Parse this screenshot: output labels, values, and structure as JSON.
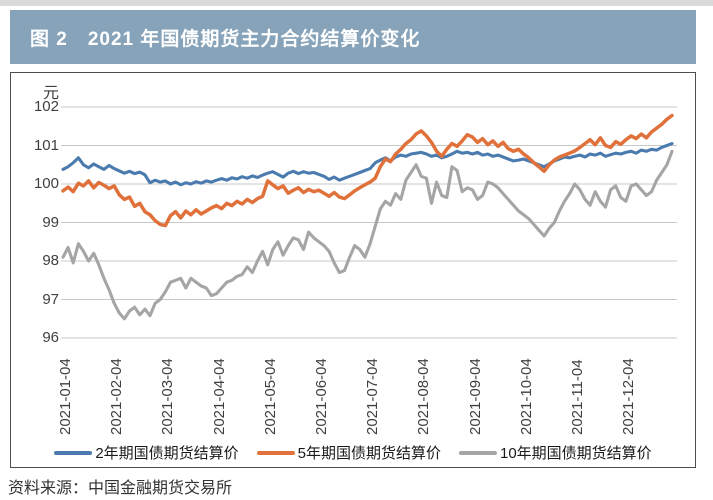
{
  "title": "图 2　2021 年国债期货主力合约结算价变化",
  "source": "资料来源：中国金融期货交易所",
  "colors": {
    "title_bar": "#87a3ba",
    "title_text": "#ffffff",
    "grid": "#c8c8c8",
    "axis_text": "#3f3f3f",
    "box_border": "#4d4d4d",
    "page_top_edge": "#d9d9d9"
  },
  "chart_data": {
    "type": "line",
    "title": "2021 年国债期货主力合约结算价变化",
    "ylabel": "元",
    "xlabel": "",
    "ylim": [
      96,
      102
    ],
    "yticks": [
      102,
      101,
      100,
      99,
      98,
      97,
      96
    ],
    "grid": "horizontal",
    "legend_position": "bottom",
    "categories": [
      "2021-01-04",
      "2021-02-04",
      "2021-03-04",
      "2021-04-04",
      "2021-05-04",
      "2021-06-04",
      "2021-07-04",
      "2021-08-04",
      "2021-09-04",
      "2021-10-04",
      "2021-11-04",
      "2021-12-04"
    ],
    "series": [
      {
        "name": "2年期国债期货结算价",
        "color": "#4b7bae",
        "values": [
          100.38,
          100.45,
          100.55,
          100.68,
          100.5,
          100.42,
          100.52,
          100.45,
          100.38,
          100.48,
          100.4,
          100.34,
          100.28,
          100.33,
          100.27,
          100.31,
          100.24,
          100.03,
          100.1,
          100.05,
          100.08,
          100.0,
          100.05,
          99.98,
          100.03,
          100.0,
          100.06,
          100.02,
          100.08,
          100.05,
          100.1,
          100.14,
          100.1,
          100.16,
          100.13,
          100.19,
          100.15,
          100.21,
          100.17,
          100.23,
          100.28,
          100.32,
          100.25,
          100.18,
          100.28,
          100.33,
          100.27,
          100.32,
          100.28,
          100.3,
          100.25,
          100.2,
          100.12,
          100.18,
          100.1,
          100.15,
          100.2,
          100.25,
          100.3,
          100.35,
          100.4,
          100.55,
          100.62,
          100.68,
          100.6,
          100.7,
          100.75,
          100.72,
          100.78,
          100.8,
          100.82,
          100.78,
          100.72,
          100.75,
          100.68,
          100.72,
          100.78,
          100.85,
          100.8,
          100.82,
          100.78,
          100.82,
          100.75,
          100.78,
          100.72,
          100.75,
          100.7,
          100.65,
          100.6,
          100.62,
          100.65,
          100.6,
          100.55,
          100.5,
          100.45,
          100.52,
          100.6,
          100.65,
          100.7,
          100.68,
          100.72,
          100.75,
          100.7,
          100.78,
          100.75,
          100.8,
          100.72,
          100.76,
          100.8,
          100.78,
          100.82,
          100.85,
          100.8,
          100.88,
          100.85,
          100.9,
          100.88,
          100.95,
          101.0,
          101.05
        ]
      },
      {
        "name": "5年期国债期货结算价",
        "color": "#e0713a",
        "values": [
          99.82,
          99.92,
          99.8,
          100.02,
          99.95,
          100.08,
          99.9,
          100.04,
          99.97,
          99.88,
          99.95,
          99.72,
          99.6,
          99.66,
          99.42,
          99.5,
          99.28,
          99.2,
          99.05,
          98.95,
          98.92,
          99.18,
          99.28,
          99.12,
          99.3,
          99.2,
          99.33,
          99.22,
          99.3,
          99.38,
          99.44,
          99.36,
          99.5,
          99.44,
          99.55,
          99.48,
          99.6,
          99.52,
          99.62,
          99.68,
          100.08,
          99.98,
          99.88,
          99.95,
          99.76,
          99.84,
          99.9,
          99.78,
          99.86,
          99.8,
          99.84,
          99.76,
          99.68,
          99.78,
          99.66,
          99.62,
          99.72,
          99.82,
          99.9,
          99.98,
          100.05,
          100.15,
          100.45,
          100.65,
          100.58,
          100.78,
          100.9,
          101.05,
          101.15,
          101.3,
          101.38,
          101.25,
          101.08,
          100.85,
          100.72,
          100.9,
          101.05,
          100.98,
          101.12,
          101.28,
          101.22,
          101.08,
          101.18,
          101.02,
          101.12,
          100.98,
          101.08,
          100.92,
          100.85,
          100.9,
          100.78,
          100.68,
          100.55,
          100.45,
          100.33,
          100.5,
          100.62,
          100.7,
          100.75,
          100.8,
          100.86,
          100.95,
          101.05,
          101.15,
          101.02,
          101.2,
          101.0,
          100.95,
          101.1,
          101.03,
          101.15,
          101.25,
          101.18,
          101.3,
          101.2,
          101.35,
          101.45,
          101.55,
          101.68,
          101.78
        ]
      },
      {
        "name": "10年期国债期货结算价",
        "color": "#a5a5a5",
        "values": [
          98.1,
          98.35,
          97.95,
          98.45,
          98.25,
          98.0,
          98.2,
          97.9,
          97.55,
          97.25,
          96.9,
          96.65,
          96.5,
          96.7,
          96.8,
          96.6,
          96.75,
          96.58,
          96.9,
          97.0,
          97.2,
          97.45,
          97.5,
          97.55,
          97.3,
          97.55,
          97.45,
          97.35,
          97.3,
          97.1,
          97.15,
          97.3,
          97.45,
          97.5,
          97.6,
          97.65,
          97.85,
          97.7,
          98.0,
          98.25,
          97.9,
          98.3,
          98.5,
          98.15,
          98.4,
          98.6,
          98.55,
          98.3,
          98.75,
          98.6,
          98.5,
          98.4,
          98.25,
          97.95,
          97.7,
          97.75,
          98.1,
          98.4,
          98.3,
          98.1,
          98.45,
          98.9,
          99.35,
          99.55,
          99.45,
          99.75,
          99.6,
          100.1,
          100.3,
          100.5,
          100.2,
          100.15,
          99.5,
          100.05,
          99.7,
          99.65,
          100.45,
          100.35,
          99.8,
          99.9,
          99.85,
          99.6,
          99.7,
          100.05,
          100.0,
          99.9,
          99.75,
          99.6,
          99.45,
          99.3,
          99.2,
          99.1,
          98.95,
          98.8,
          98.65,
          98.85,
          99.0,
          99.3,
          99.55,
          99.75,
          100.0,
          99.85,
          99.6,
          99.45,
          99.8,
          99.55,
          99.4,
          99.85,
          99.95,
          99.65,
          99.55,
          99.95,
          100.0,
          99.85,
          99.7,
          99.8,
          100.1,
          100.3,
          100.5,
          100.85
        ]
      }
    ]
  }
}
